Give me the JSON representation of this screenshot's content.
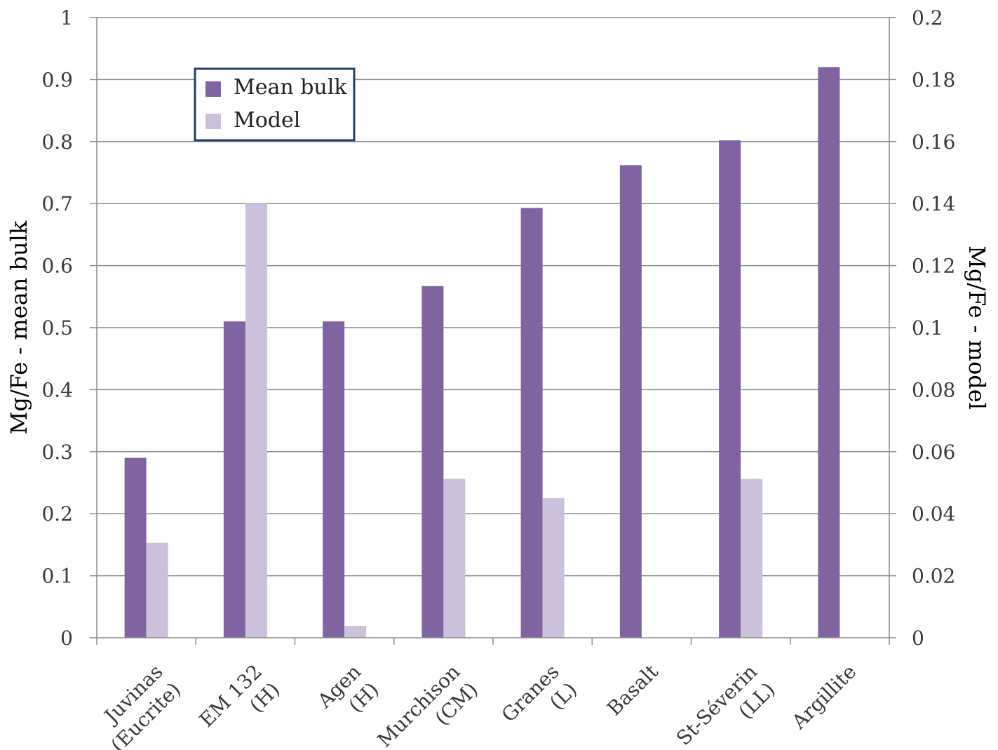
{
  "chart_data": {
    "type": "bar",
    "categories": [
      [
        "Juvinas",
        "(Eucrite)"
      ],
      [
        "EM 132",
        "(H)"
      ],
      [
        "Agen",
        "(H)"
      ],
      [
        "Murchison",
        "(CM)"
      ],
      [
        "Granes",
        "(L)"
      ],
      [
        "Basalt"
      ],
      [
        "St-Séverin",
        "(LL)"
      ],
      [
        "Argillite"
      ]
    ],
    "series": [
      {
        "name": "Mean bulk",
        "axis": "left",
        "color": "#8064a2",
        "values": [
          0.29,
          0.51,
          0.51,
          0.567,
          0.693,
          0.762,
          0.802,
          0.92
        ]
      },
      {
        "name": "Model",
        "axis": "right",
        "color": "#ccc1da",
        "values": [
          0.0306,
          0.14,
          0.0038,
          0.0512,
          0.045,
          null,
          0.0512,
          null
        ]
      }
    ],
    "y_left": {
      "label": "Mg/Fe - mean bulk",
      "range": [
        0,
        1
      ],
      "ticks": [
        "0",
        "0.1",
        "0.2",
        "0.3",
        "0.4",
        "0.5",
        "0.6",
        "0.7",
        "0.8",
        "0.9",
        "1"
      ]
    },
    "y_right": {
      "label": "Mg/Fe - model",
      "range": [
        0,
        0.2
      ],
      "ticks": [
        "0",
        "0.02",
        "0.04",
        "0.06",
        "0.08",
        "0.1",
        "0.12",
        "0.14",
        "0.16",
        "0.18",
        "0.2"
      ]
    },
    "grid": true,
    "legend_position": "top-left",
    "legend_border_color": "#1f3f6e"
  }
}
